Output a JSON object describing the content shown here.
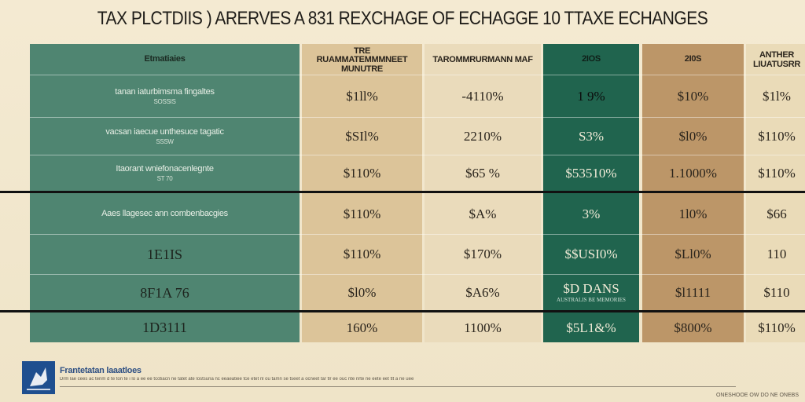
{
  "title": "TAX PLCTDIIS ) ARERVES A 831 REXCHAGE OF ECHAGGE 10 TTAXE ECHANGES",
  "headers": [
    "Etmatiaies",
    "TRE RUAMMATEMMMNEET MUNUTRE",
    "TAROMMRURMANN MAF",
    "2IOS",
    "2I0S",
    "ANTHER LIUATUSRR"
  ],
  "row_labels": [
    {
      "main": "tanan iaturbimsma fingaltes",
      "sub": "SOSSIS"
    },
    {
      "main": "vacsan iaecue unthesuce tagatic",
      "sub": "SSSW"
    },
    {
      "main": "Itaorant wniefonacenlegnte",
      "sub": "ST 70"
    },
    {
      "main": "Aaes llagesec ann combenbacgies",
      "sub": ""
    },
    {
      "main": "1E1IS",
      "sub": ""
    },
    {
      "main": "8F1A 76",
      "sub": ""
    },
    {
      "main": "1D3111",
      "sub": ""
    }
  ],
  "rows": [
    [
      "$1ll%",
      "-4110%",
      "1 9%",
      "$10%",
      "$1l%"
    ],
    [
      "$SIl%",
      "2210%",
      "S3%",
      "$l0%",
      "$110%"
    ],
    [
      "$110%",
      "$65 %",
      "$53510%",
      "1.1000%",
      "$110%"
    ],
    [
      "$110%",
      "$A%",
      "3%",
      "1l0%",
      "$66"
    ],
    [
      "$110%",
      "$170%",
      "$$USI0%",
      "$Ll0%",
      "110"
    ],
    [
      "$l0%",
      "$A6%",
      "$D DANS",
      "$l1111",
      "$110"
    ],
    [
      "160%",
      "1100%",
      "$5L1&%",
      "$800%",
      "$110%"
    ]
  ],
  "dark_subtext": "AUSTRALIS BE MEMORIES",
  "footer": {
    "brand": "Frantetatan laaatloes",
    "text": "Drm lae cees ac tenm d te ton te i lo a ee ee tcotiacn ne tatet ate lostsuna nc eeaeatiee tce etet nl ou tamn se tseet a ocneet tar tlr ee ouc nte nrte ne eete eet tlt a ne uee",
    "right": "ONESHOOE OW DO NE ONEBS"
  },
  "colors": {
    "label_column": "#4f8571",
    "col_1": "#dcc499",
    "col_2": "#eadbbb",
    "col_3": "#20644e",
    "col_4": "#bc9668",
    "col_5": "#eadbb8",
    "background": "#f1e7cf"
  },
  "icons": {
    "logo": "eagle-logo-icon"
  }
}
